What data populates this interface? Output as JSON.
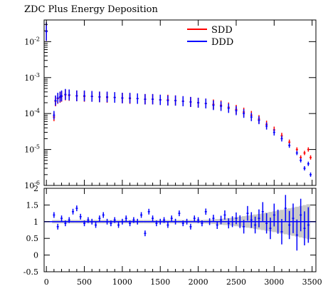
{
  "chart_data": {
    "type": "scatter",
    "title": "ZDC Plus Energy Deposition",
    "colors": {
      "SDD": "#ff0000",
      "DDD": "#0000ff",
      "ratio_band": "#c8c8c8"
    },
    "legend": {
      "placement": "top-right",
      "entries": [
        "SDD",
        "DDD"
      ]
    },
    "xlim": [
      -30,
      3550
    ],
    "xticks": [
      "0",
      "500",
      "1000",
      "1500",
      "2000",
      "2500",
      "3000",
      "3500"
    ],
    "main_panel": {
      "yscale": "log",
      "ylim": [
        1e-06,
        0.04
      ],
      "yticks": [
        {
          "exp": "-6",
          "value": 1e-06
        },
        {
          "exp": "-5",
          "value": 1e-05
        },
        {
          "exp": "-4",
          "value": 0.0001
        },
        {
          "exp": "-3",
          "value": 0.001
        },
        {
          "exp": "-2",
          "value": 0.01
        }
      ],
      "series": [
        {
          "name": "SDD",
          "x": [
            0,
            100,
            120,
            150,
            180,
            200,
            250,
            300,
            400,
            500,
            600,
            700,
            800,
            900,
            1000,
            1100,
            1200,
            1300,
            1400,
            1500,
            1600,
            1700,
            1800,
            1900,
            2000,
            2100,
            2200,
            2300,
            2400,
            2500,
            2600,
            2700,
            2800,
            2900,
            3000,
            3100,
            3200,
            3300,
            3350,
            3400,
            3450,
            3480
          ],
          "y": [
            0.019,
            8e-05,
            0.00022,
            0.00026,
            0.00028,
            0.0003,
            0.00033,
            0.00032,
            0.00031,
            0.0003,
            0.0003,
            0.00029,
            0.00028,
            0.00028,
            0.00027,
            0.00026,
            0.00026,
            0.00025,
            0.00025,
            0.00024,
            0.00024,
            0.00023,
            0.00022,
            0.00021,
            0.0002,
            0.00019,
            0.00018,
            0.00017,
            0.00015,
            0.00013,
            0.00011,
            9e-05,
            7e-05,
            5e-05,
            3.5e-05,
            2.4e-05,
            1.6e-05,
            1e-05,
            6e-06,
            8e-06,
            1e-05,
            6e-06
          ]
        },
        {
          "name": "DDD",
          "x": [
            0,
            100,
            120,
            150,
            180,
            200,
            250,
            300,
            400,
            500,
            600,
            700,
            800,
            900,
            1000,
            1100,
            1200,
            1300,
            1400,
            1500,
            1600,
            1700,
            1800,
            1900,
            2000,
            2100,
            2200,
            2300,
            2400,
            2500,
            2600,
            2700,
            2800,
            2900,
            3000,
            3100,
            3200,
            3300,
            3350,
            3400,
            3450,
            3480
          ],
          "y": [
            0.019,
            9e-05,
            0.00023,
            0.00027,
            0.00029,
            0.00031,
            0.00034,
            0.00033,
            0.00031,
            0.00031,
            0.0003,
            0.00029,
            0.00029,
            0.00028,
            0.00027,
            0.00027,
            0.00026,
            0.00025,
            0.00025,
            0.00024,
            0.00023,
            0.00023,
            0.00022,
            0.00021,
            0.0002,
            0.00019,
            0.00017,
            0.00016,
            0.00014,
            0.00012,
            0.0001,
            8e-05,
            6.5e-05,
            4.5e-05,
            3e-05,
            2e-05,
            1.3e-05,
            8e-06,
            5e-06,
            3e-06,
            4e-06,
            2e-06
          ]
        }
      ]
    },
    "ratio_panel": {
      "ylim": [
        -0.5,
        2
      ],
      "yticks": [
        "-0.5",
        "0",
        "0.5",
        "1",
        "1.5",
        "2"
      ],
      "reference_line": 1,
      "x": [
        100,
        150,
        200,
        250,
        300,
        350,
        400,
        450,
        500,
        550,
        600,
        650,
        700,
        750,
        800,
        850,
        900,
        950,
        1000,
        1050,
        1100,
        1150,
        1200,
        1250,
        1300,
        1350,
        1400,
        1450,
        1500,
        1550,
        1600,
        1650,
        1700,
        1750,
        1800,
        1850,
        1900,
        1950,
        2000,
        2050,
        2100,
        2150,
        2200,
        2250,
        2300,
        2350,
        2400,
        2450,
        2500,
        2550,
        2600,
        2650,
        2700,
        2750,
        2800,
        2850,
        2900,
        2950,
        3000,
        3050,
        3100,
        3150,
        3200,
        3250,
        3300,
        3350,
        3400,
        3450
      ],
      "y": [
        1.2,
        0.85,
        1.1,
        0.95,
        1.05,
        1.3,
        1.4,
        1.15,
        0.95,
        1.05,
        1.0,
        0.9,
        1.1,
        1.2,
        1.0,
        0.95,
        1.05,
        0.9,
        1.0,
        1.1,
        0.95,
        1.05,
        1.0,
        1.2,
        0.65,
        1.3,
        1.1,
        0.95,
        1.0,
        1.05,
        0.9,
        1.1,
        1.0,
        1.25,
        0.95,
        1.0,
        0.85,
        1.1,
        1.05,
        0.95,
        1.3,
        1.0,
        1.1,
        0.9,
        1.05,
        1.2,
        0.95,
        1.0,
        1.1,
        1.0,
        0.85,
        1.25,
        1.05,
        0.9,
        1.1,
        1.3,
        0.95,
        0.8,
        1.2,
        1.0,
        0.7,
        1.4,
        0.9,
        1.1,
        0.6,
        1.2,
        0.8,
        0.9
      ]
    }
  }
}
